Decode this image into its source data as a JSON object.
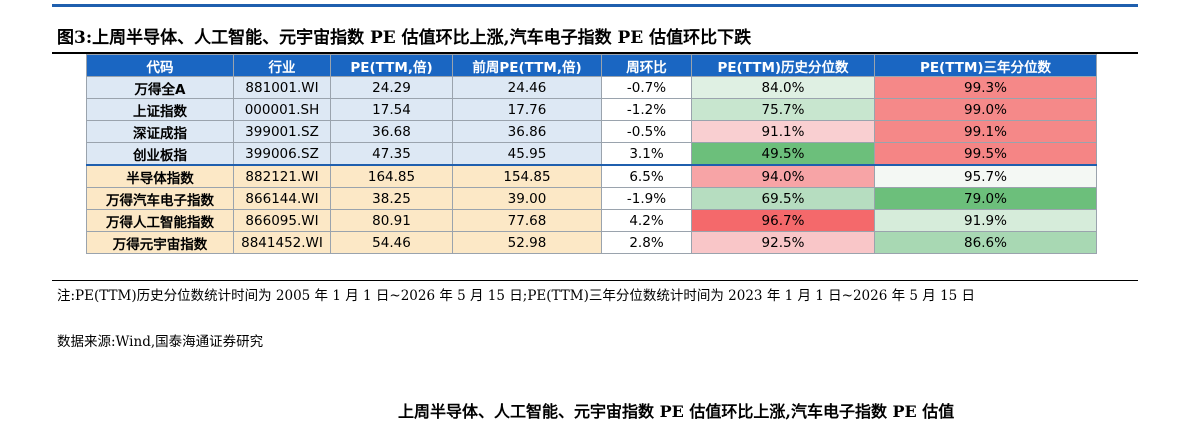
{
  "figure_title": "图3:上周半导体、人工智能、元宇宙指数 PE 估值环比上涨,汽车电子指数 PE 估值环比下跌",
  "table": {
    "headers": [
      "代码",
      "行业",
      "PE(TTM,倍)",
      "前周PE(TTM,倍)",
      "周环比",
      "PE(TTM)历史分位数",
      "PE(TTM)三年分位数"
    ],
    "rows": [
      {
        "code": "万得全A",
        "industry": "881001.WI",
        "pe": "24.29",
        "pe_prev": "24.46",
        "wow": "-0.7%",
        "hist_pct": "84.0%",
        "hist_color": "#dff0e3",
        "three_pct": "99.3%",
        "three_color": "#f58888",
        "group": "grp1"
      },
      {
        "code": "上证指数",
        "industry": "000001.SH",
        "pe": "17.54",
        "pe_prev": "17.76",
        "wow": "-1.2%",
        "hist_pct": "75.7%",
        "hist_color": "#c8e6cf",
        "three_pct": "99.0%",
        "three_color": "#f58989",
        "group": "grp1"
      },
      {
        "code": "深证成指",
        "industry": "399001.SZ",
        "pe": "36.68",
        "pe_prev": "36.86",
        "wow": "-0.5%",
        "hist_pct": "91.1%",
        "hist_color": "#f9cfd1",
        "three_pct": "99.1%",
        "three_color": "#f58888",
        "group": "grp1"
      },
      {
        "code": "创业板指",
        "industry": "399006.SZ",
        "pe": "47.35",
        "pe_prev": "45.95",
        "wow": "3.1%",
        "hist_pct": "49.5%",
        "hist_color": "#6cbf7b",
        "three_pct": "99.5%",
        "three_color": "#f58585",
        "group": "grp1"
      },
      {
        "code": "半导体指数",
        "industry": "882121.WI",
        "pe": "164.85",
        "pe_prev": "154.85",
        "wow": "6.5%",
        "hist_pct": "94.0%",
        "hist_color": "#f7a4a6",
        "three_pct": "95.7%",
        "three_color": "#f4f8f4",
        "group": "grp2"
      },
      {
        "code": "万得汽车电子指数",
        "industry": "866144.WI",
        "pe": "38.25",
        "pe_prev": "39.00",
        "wow": "-1.9%",
        "hist_pct": "69.5%",
        "hist_color": "#b6ddc0",
        "three_pct": "79.0%",
        "three_color": "#6cbf7b",
        "group": "grp2"
      },
      {
        "code": "万得人工智能指数",
        "industry": "866095.WI",
        "pe": "80.91",
        "pe_prev": "77.68",
        "wow": "4.2%",
        "hist_pct": "96.7%",
        "hist_color": "#f4696b",
        "three_pct": "91.9%",
        "three_color": "#d6ecda",
        "group": "grp2"
      },
      {
        "code": "万得元宇宙指数",
        "industry": "8841452.WI",
        "pe": "54.46",
        "pe_prev": "52.98",
        "wow": "2.8%",
        "hist_pct": "92.5%",
        "hist_color": "#f9c6c8",
        "three_pct": "86.6%",
        "three_color": "#a8d8b3",
        "group": "grp2"
      }
    ]
  },
  "note": "注:PE(TTM)历史分位数统计时间为 2005 年 1 月 1 日~2026 年 5 月 15 日;PE(TTM)三年分位数统计时间为 2023 年 1 月 1 日~2026 年 5 月 15 日",
  "source": "数据来源:Wind,国泰海通证券研究",
  "next_title": "上周半导体、人工智能、元宇宙指数 PE 估值环比上涨,汽车电子指数 PE 估值"
}
